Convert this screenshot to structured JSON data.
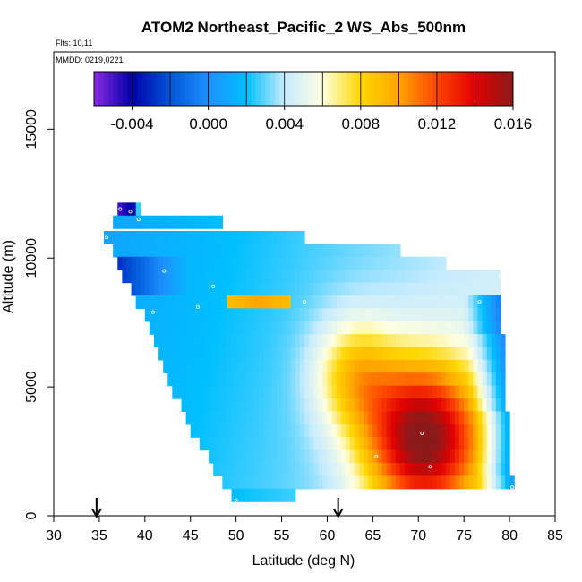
{
  "chart_data": {
    "type": "heatmap",
    "title": "ATOM2 Northeast_Pacific_2 WS_Abs_500nm",
    "flights_text": "Flts: 10,11",
    "dates_text": "MMDD: 0219,0221",
    "xlabel": "Latitude (deg N)",
    "ylabel": "Altitude (m)",
    "xlim": [
      30,
      85
    ],
    "ylim": [
      0,
      18000
    ],
    "x_ticks": [
      30,
      35,
      40,
      45,
      50,
      55,
      60,
      65,
      70,
      75,
      80,
      85
    ],
    "y_ticks": [
      0,
      5000,
      10000,
      15000
    ],
    "colorbar": {
      "range": [
        -0.006,
        0.016
      ],
      "ticks": [
        "-0.004",
        "0.000",
        "0.004",
        "0.008",
        "0.012",
        "0.016"
      ],
      "tick_values": [
        -0.004,
        0.0,
        0.004,
        0.008,
        0.012,
        0.016
      ],
      "colors": [
        "#8a2be2",
        "#0000a8",
        "#0055d8",
        "#1e90ff",
        "#00bfff",
        "#c6ebff",
        "#ffffe0",
        "#ffd700",
        "#ffa500",
        "#ff4500",
        "#e00000",
        "#8b1a1a"
      ]
    },
    "arrows_at_latitude": [
      34.7,
      61.2
    ],
    "rows": [
      {
        "alt": 11900,
        "lat_from": 37.0,
        "lat_to": 39.5
      },
      {
        "alt": 11400,
        "lat_from": 36.5,
        "lat_to": 48.5
      },
      {
        "alt": 10800,
        "lat_from": 35.5,
        "lat_to": 57.5
      },
      {
        "alt": 10300,
        "lat_from": 36.5,
        "lat_to": 68.0
      },
      {
        "alt": 9800,
        "lat_from": 37.0,
        "lat_to": 73.0
      },
      {
        "alt": 9300,
        "lat_from": 37.5,
        "lat_to": 79.0
      },
      {
        "alt": 8800,
        "lat_from": 38.5,
        "lat_to": 79.0
      },
      {
        "alt": 8300,
        "lat_from": 39.0,
        "lat_to": 79.0
      },
      {
        "alt": 7800,
        "lat_from": 40.0,
        "lat_to": 79.0
      },
      {
        "alt": 7300,
        "lat_from": 40.5,
        "lat_to": 79.0
      },
      {
        "alt": 6800,
        "lat_from": 41.0,
        "lat_to": 79.5
      },
      {
        "alt": 6300,
        "lat_from": 41.5,
        "lat_to": 79.5
      },
      {
        "alt": 5800,
        "lat_from": 42.0,
        "lat_to": 79.5
      },
      {
        "alt": 5300,
        "lat_from": 42.5,
        "lat_to": 79.5
      },
      {
        "alt": 4800,
        "lat_from": 43.0,
        "lat_to": 79.5
      },
      {
        "alt": 4300,
        "lat_from": 44.0,
        "lat_to": 79.5
      },
      {
        "alt": 3800,
        "lat_from": 44.5,
        "lat_to": 80.0
      },
      {
        "alt": 3300,
        "lat_from": 45.0,
        "lat_to": 80.0
      },
      {
        "alt": 2800,
        "lat_from": 46.0,
        "lat_to": 80.0
      },
      {
        "alt": 2300,
        "lat_from": 47.0,
        "lat_to": 80.0
      },
      {
        "alt": 1800,
        "lat_from": 47.5,
        "lat_to": 80.0
      },
      {
        "alt": 1300,
        "lat_from": 48.5,
        "lat_to": 80.5
      },
      {
        "alt": 800,
        "lat_from": 49.5,
        "lat_to": 56.5
      }
    ],
    "features": {
      "low_patch": {
        "lat_from": 37.0,
        "lat_to": 45.0,
        "alt_from": 8700,
        "alt_to": 10200,
        "value": -0.003
      },
      "top_cells": {
        "lat_from": 37.0,
        "lat_to": 39.5,
        "alt_from": 11600,
        "alt_to": 12200,
        "value": -0.005
      },
      "high_core": {
        "lat": 70.5,
        "alt": 3000,
        "value": 0.0145
      },
      "band": {
        "lat_from": 49.0,
        "lat_to": 56.0,
        "alt_from": 8000,
        "alt_to": 8600,
        "value": 0.009
      }
    },
    "samples": [
      {
        "lat": 37.3,
        "alt": 11900
      },
      {
        "lat": 38.4,
        "alt": 11800
      },
      {
        "lat": 39.3,
        "alt": 11500
      },
      {
        "lat": 35.8,
        "alt": 10800
      },
      {
        "lat": 42.1,
        "alt": 9500
      },
      {
        "lat": 47.5,
        "alt": 8900
      },
      {
        "lat": 57.5,
        "alt": 8300
      },
      {
        "lat": 45.8,
        "alt": 8100
      },
      {
        "lat": 40.9,
        "alt": 7900
      },
      {
        "lat": 79.0,
        "alt": 9300
      },
      {
        "lat": 76.7,
        "alt": 8300
      },
      {
        "lat": 73.3,
        "alt": 7400
      },
      {
        "lat": 70.4,
        "alt": 3200
      },
      {
        "lat": 65.4,
        "alt": 2300
      },
      {
        "lat": 71.3,
        "alt": 1900
      },
      {
        "lat": 50.0,
        "alt": 600
      },
      {
        "lat": 80.3,
        "alt": 1100
      }
    ]
  }
}
